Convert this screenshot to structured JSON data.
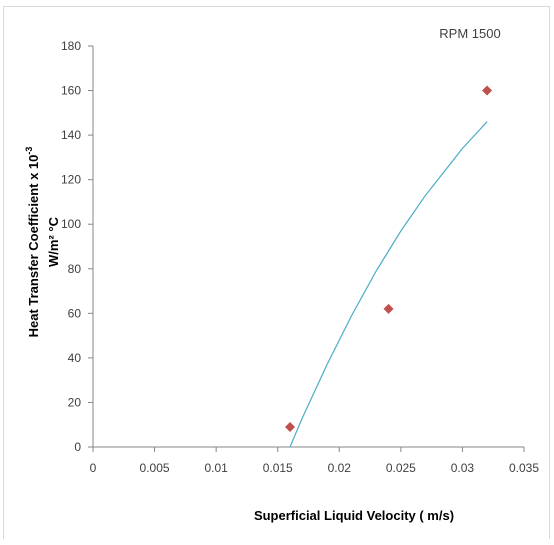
{
  "chart_data": {
    "type": "scatter",
    "title": "",
    "annotation": "RPM 1500",
    "xlabel": "Superficial Liquid Velocity  ( m/s)",
    "ylabel_line1": "Heat Transfer Coefficient x 10",
    "ylabel_exp": "-3",
    "ylabel_line2": "W/m² °C",
    "xlim": [
      0,
      0.035
    ],
    "ylim": [
      0,
      180
    ],
    "x_ticks": [
      0,
      0.005,
      0.01,
      0.015,
      0.02,
      0.025,
      0.03,
      0.035
    ],
    "x_tick_labels": [
      "0",
      "0.005",
      "0.01",
      "0.015",
      "0.02",
      "0.025",
      "0.03",
      "0.035"
    ],
    "y_ticks": [
      0,
      20,
      40,
      60,
      80,
      100,
      120,
      140,
      160,
      180
    ],
    "y_tick_labels": [
      "0",
      "20",
      "40",
      "60",
      "80",
      "100",
      "120",
      "140",
      "160",
      "180"
    ],
    "grid": false,
    "legend": "none",
    "series": [
      {
        "marker": "diamond",
        "color": "#c0504d",
        "x": [
          0.016,
          0.024,
          0.032
        ],
        "y": [
          9,
          62,
          160
        ]
      }
    ],
    "trendline": {
      "color": "#4bacc6",
      "x": [
        0.016,
        0.017,
        0.018,
        0.019,
        0.02,
        0.021,
        0.022,
        0.023,
        0.024,
        0.025,
        0.026,
        0.027,
        0.028,
        0.029,
        0.03,
        0.031,
        0.032
      ],
      "y": [
        0,
        13,
        25,
        37,
        48,
        59,
        69,
        79,
        88,
        97,
        105,
        113,
        120,
        127,
        134,
        140,
        146
      ]
    }
  }
}
